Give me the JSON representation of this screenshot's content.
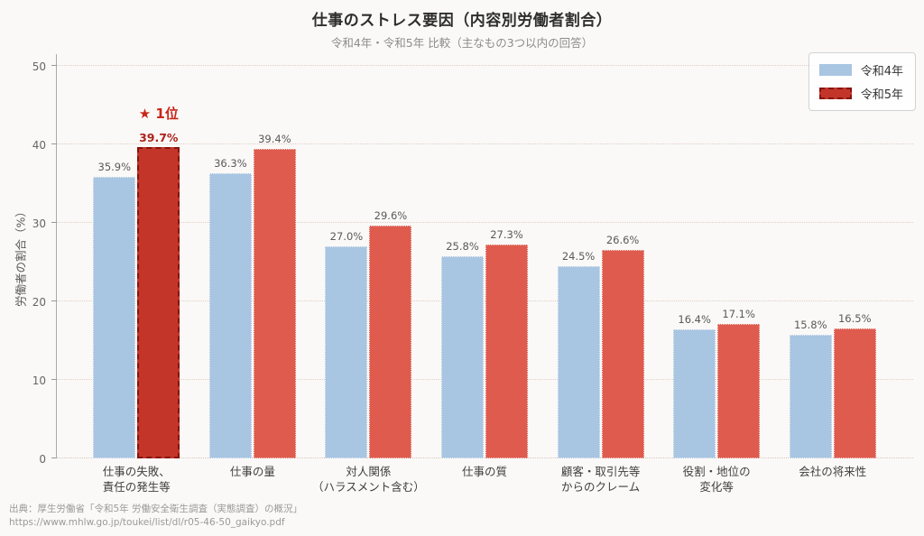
{
  "title": "仕事のストレス要因（内容別労働者割合）",
  "subtitle": "令和4年・令和5年 比較（主なもの3つ以内の回答）",
  "chart_data": {
    "type": "bar",
    "title": "仕事のストレス要因（内容別労働者割合）",
    "subtitle": "令和4年・令和5年 比較（主なもの3つ以内の回答）",
    "ylabel": "労働者の割合（%）",
    "xlabel": "",
    "ylim": [
      0,
      50
    ],
    "yticks": [
      0,
      10,
      20,
      30,
      40,
      50
    ],
    "grid": {
      "show": true,
      "style": "dotted",
      "color": "#e3ccc4",
      "orientation": "horizontal"
    },
    "legend_position": "top-right",
    "categories": [
      [
        "仕事の失敗、",
        "責任の発生等"
      ],
      [
        "仕事の量"
      ],
      [
        "対人関係",
        "（ハラスメント含む）"
      ],
      [
        "仕事の質"
      ],
      [
        "顧客・取引先等",
        "からのクレーム"
      ],
      [
        "役割・地位の",
        "変化等"
      ],
      [
        "会社の将来性"
      ]
    ],
    "series": [
      {
        "name": "令和4年",
        "color": "#a8c5e2",
        "values": [
          35.9,
          36.3,
          27.0,
          25.8,
          24.5,
          16.4,
          15.8
        ]
      },
      {
        "name": "令和5年",
        "color": "#df5b4e",
        "values": [
          39.7,
          39.4,
          29.6,
          27.3,
          26.6,
          17.1,
          16.5
        ]
      }
    ],
    "highlight": {
      "series_index": 1,
      "category_index": 0,
      "fill": "#c43529",
      "border": "#83140e",
      "annotation": "★ 1位",
      "label_color": "#ad241a"
    }
  },
  "footer": {
    "source": "出典：厚生労働省「令和5年 労働安全衛生調査（実態調査）の概況」",
    "url": "https://www.mhlw.go.jp/toukei/list/dl/r05-46-50_gaikyo.pdf"
  }
}
